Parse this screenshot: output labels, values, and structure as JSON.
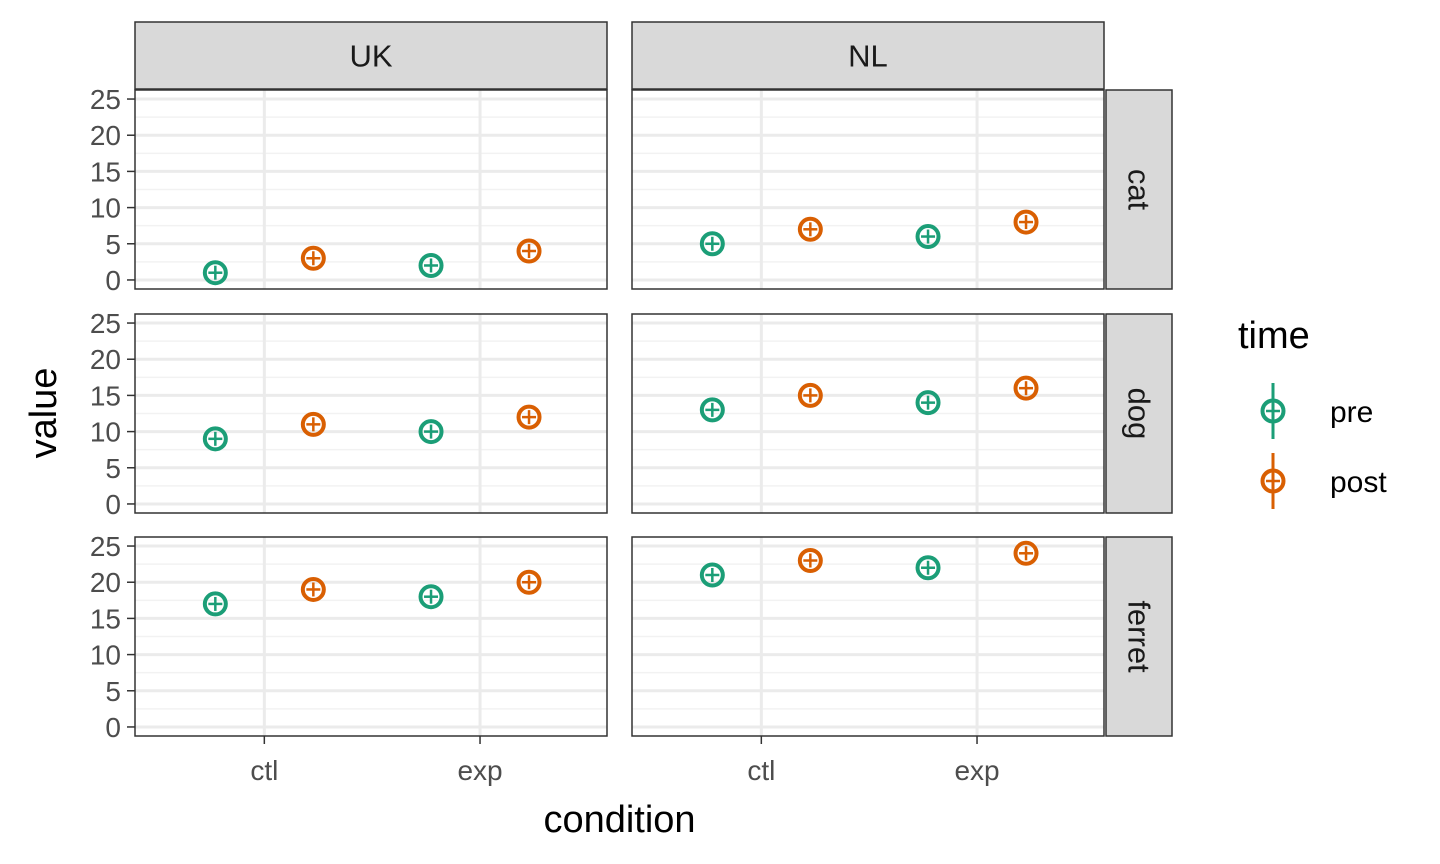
{
  "chart_data": {
    "type": "scatter",
    "facet_columns": [
      "UK",
      "NL"
    ],
    "facet_rows": [
      "cat",
      "dog",
      "ferret"
    ],
    "categories": [
      "ctl",
      "exp"
    ],
    "xlabel": "condition",
    "ylabel": "value",
    "ylim": [
      0,
      25
    ],
    "yticks": [
      "0",
      "5",
      "10",
      "15",
      "20",
      "25"
    ],
    "grid": true,
    "dodge_groups": [
      "pre",
      "post"
    ],
    "legend": {
      "title": "time",
      "position": "right",
      "entries": [
        {
          "name": "pre",
          "color": "#1b9e77"
        },
        {
          "name": "post",
          "color": "#d95f02"
        }
      ]
    },
    "series": [
      {
        "name": "pre",
        "color": "#1b9e77",
        "points": [
          {
            "column": "UK",
            "row": "cat",
            "x": "ctl",
            "y": 1
          },
          {
            "column": "UK",
            "row": "cat",
            "x": "exp",
            "y": 2
          },
          {
            "column": "NL",
            "row": "cat",
            "x": "ctl",
            "y": 5
          },
          {
            "column": "NL",
            "row": "cat",
            "x": "exp",
            "y": 6
          },
          {
            "column": "UK",
            "row": "dog",
            "x": "ctl",
            "y": 9
          },
          {
            "column": "UK",
            "row": "dog",
            "x": "exp",
            "y": 10
          },
          {
            "column": "NL",
            "row": "dog",
            "x": "ctl",
            "y": 13
          },
          {
            "column": "NL",
            "row": "dog",
            "x": "exp",
            "y": 14
          },
          {
            "column": "UK",
            "row": "ferret",
            "x": "ctl",
            "y": 17
          },
          {
            "column": "UK",
            "row": "ferret",
            "x": "exp",
            "y": 18
          },
          {
            "column": "NL",
            "row": "ferret",
            "x": "ctl",
            "y": 21
          },
          {
            "column": "NL",
            "row": "ferret",
            "x": "exp",
            "y": 22
          }
        ]
      },
      {
        "name": "post",
        "color": "#d95f02",
        "points": [
          {
            "column": "UK",
            "row": "cat",
            "x": "ctl",
            "y": 3
          },
          {
            "column": "UK",
            "row": "cat",
            "x": "exp",
            "y": 4
          },
          {
            "column": "NL",
            "row": "cat",
            "x": "ctl",
            "y": 7
          },
          {
            "column": "NL",
            "row": "cat",
            "x": "exp",
            "y": 8
          },
          {
            "column": "UK",
            "row": "dog",
            "x": "ctl",
            "y": 11
          },
          {
            "column": "UK",
            "row": "dog",
            "x": "exp",
            "y": 12
          },
          {
            "column": "NL",
            "row": "dog",
            "x": "ctl",
            "y": 15
          },
          {
            "column": "NL",
            "row": "dog",
            "x": "exp",
            "y": 16
          },
          {
            "column": "UK",
            "row": "ferret",
            "x": "ctl",
            "y": 19
          },
          {
            "column": "UK",
            "row": "ferret",
            "x": "exp",
            "y": 20
          },
          {
            "column": "NL",
            "row": "ferret",
            "x": "ctl",
            "y": 23
          },
          {
            "column": "NL",
            "row": "ferret",
            "x": "exp",
            "y": 24
          }
        ]
      }
    ]
  }
}
